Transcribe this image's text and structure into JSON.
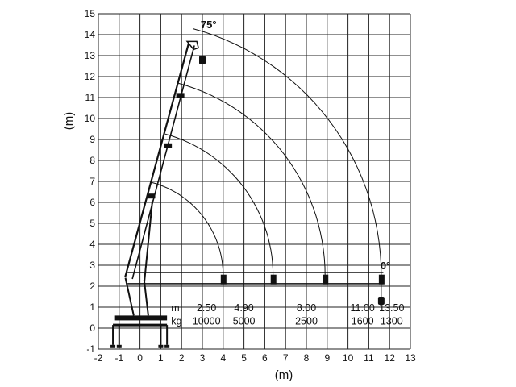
{
  "x_axis": {
    "label": "(m)",
    "ticks": [
      "-2",
      "-1",
      "0",
      "1",
      "2",
      "3",
      "4",
      "5",
      "6",
      "7",
      "8",
      "9",
      "10",
      "11",
      "12",
      "13"
    ],
    "values": [
      -2,
      -1,
      0,
      1,
      2,
      3,
      4,
      5,
      6,
      7,
      8,
      9,
      10,
      11,
      12,
      13
    ],
    "range": [
      -2,
      13
    ]
  },
  "y_axis": {
    "label": "(m)",
    "ticks": [
      "-1",
      "0",
      "1",
      "2",
      "3",
      "4",
      "5",
      "6",
      "7",
      "8",
      "9",
      "10",
      "11",
      "12",
      "13",
      "14",
      "15"
    ],
    "values": [
      -1,
      0,
      1,
      2,
      3,
      4,
      5,
      6,
      7,
      8,
      9,
      10,
      11,
      12,
      13,
      14,
      15
    ],
    "range": [
      -1,
      15
    ]
  },
  "boom": {
    "pivot": [
      -0.6,
      2.5
    ],
    "angle_max_label": "75°",
    "angle_min_label": "0°",
    "max_tip": [
      2.5,
      13.6
    ],
    "section_joints": [
      [
        0.5,
        6.3
      ],
      [
        1.3,
        8.7
      ],
      [
        1.9,
        11.1
      ]
    ]
  },
  "reach_arcs": [
    {
      "center": [
        -0.6,
        2.5
      ],
      "end_x": 4.0
    },
    {
      "center": [
        -0.6,
        2.5
      ],
      "end_x": 6.4
    },
    {
      "center": [
        -0.6,
        2.5
      ],
      "end_x": 8.9
    },
    {
      "center": [
        -0.6,
        2.5
      ],
      "end_x": 11.6
    }
  ],
  "load_table": {
    "row_m_label": "m",
    "row_kg_label": "kg",
    "columns": [
      {
        "m": "2.50",
        "kg": "10000",
        "x": 3.2
      },
      {
        "m": "4.90",
        "kg": "5000",
        "x": 5.0
      },
      {
        "m": "8.00",
        "kg": "2500",
        "x": 8.0
      },
      {
        "m": "11.00",
        "kg": "1600",
        "x": 10.7
      },
      {
        "m": "13.50",
        "kg": "1300",
        "x": 12.1
      }
    ]
  },
  "colors": {
    "line": "#111111",
    "grid": "#222222",
    "background": "#ffffff"
  }
}
